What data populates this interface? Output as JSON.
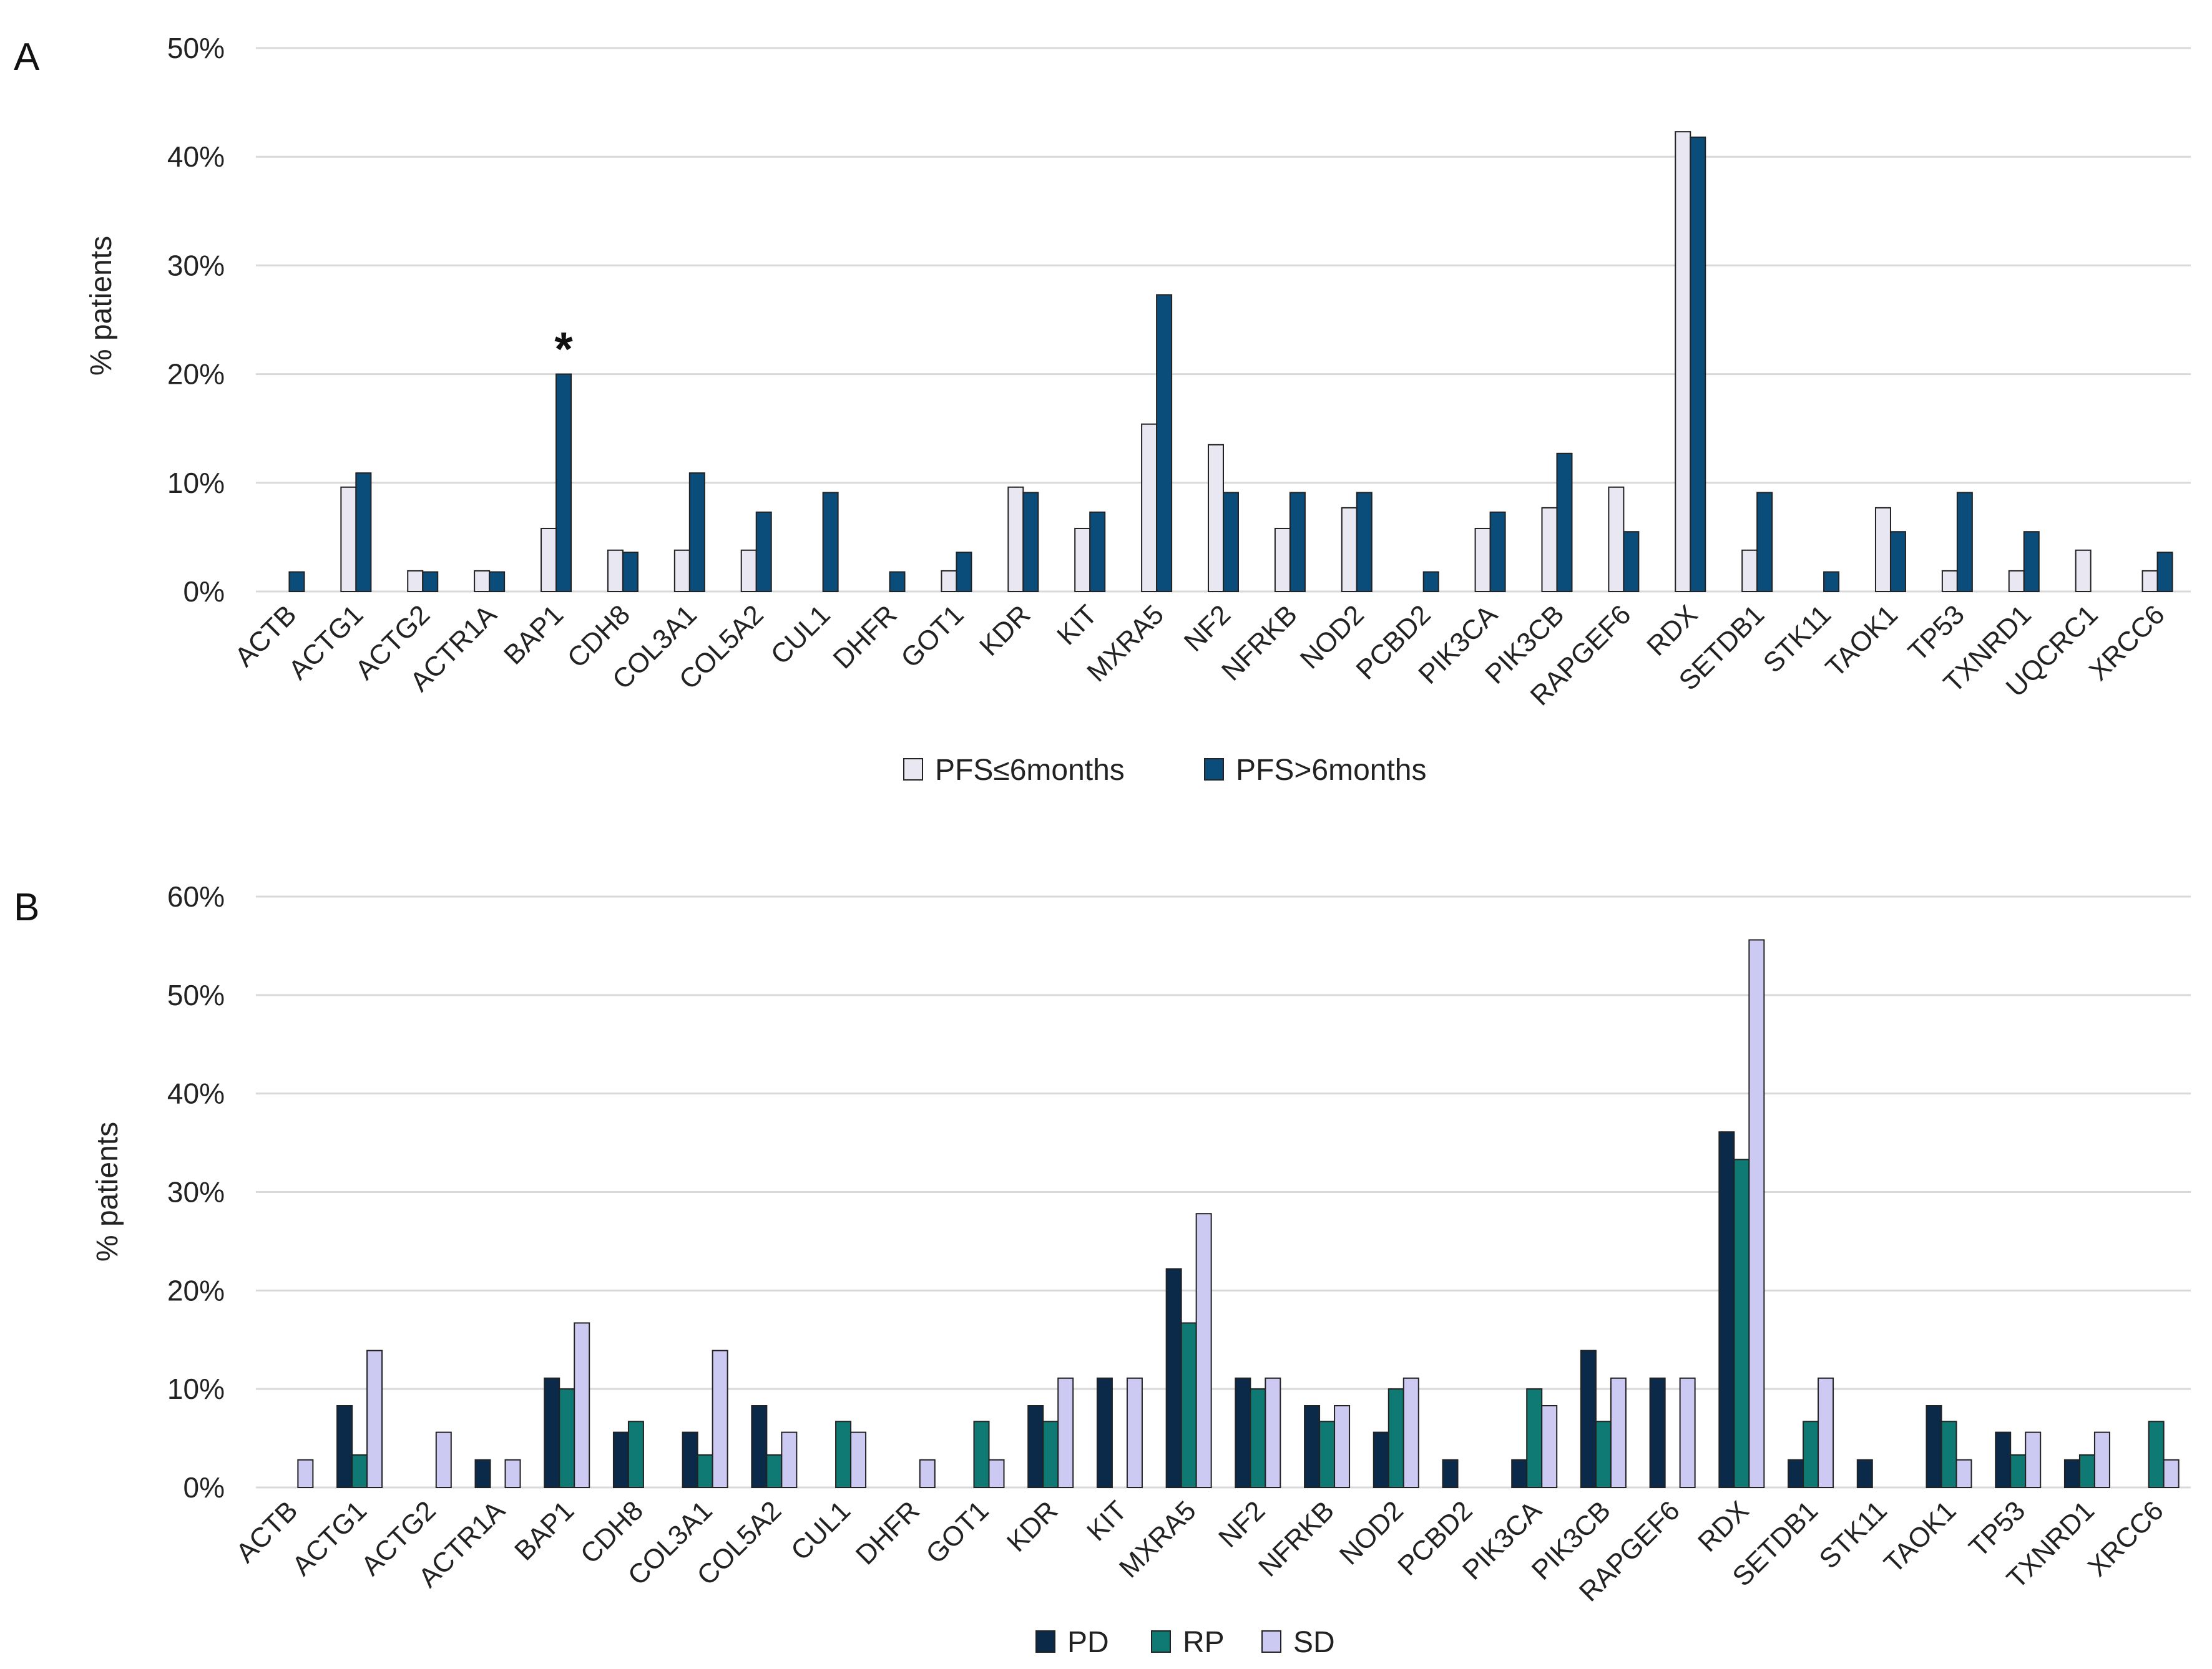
{
  "colors": {
    "pfs_le6": "#E9E7F2",
    "pfs_gt6": "#0B4D7A",
    "PD": "#0B2A4A",
    "RP": "#0F7A73",
    "SD": "#CCCAF2",
    "grid": "#D9D9D9",
    "bar_stroke": "#222222"
  },
  "chart_data": [
    {
      "panel": "A",
      "type": "bar",
      "ylabel": "% patients",
      "ylim": [
        0,
        50
      ],
      "yticks": [
        "0%",
        "10%",
        "20%",
        "30%",
        "40%",
        "50%"
      ],
      "legend_position": "bottom",
      "categories": [
        "ACTB",
        "ACTG1",
        "ACTG2",
        "ACTR1A",
        "BAP1",
        "CDH8",
        "COL3A1",
        "COL5A2",
        "CUL1",
        "DHFR",
        "GOT1",
        "KDR",
        "KIT",
        "MXRA5",
        "NF2",
        "NFRKB",
        "NOD2",
        "PCBD2",
        "PIK3CA",
        "PIK3CB",
        "RAPGEF6",
        "RDX",
        "SETDB1",
        "STK11",
        "TAOK1",
        "TP53",
        "TXNRD1",
        "UQCRC1",
        "XRCC6"
      ],
      "series": [
        {
          "name": "PFS≤6months",
          "values": [
            0,
            9.6,
            1.9,
            1.9,
            5.8,
            3.8,
            3.8,
            3.8,
            0,
            0,
            1.9,
            9.6,
            5.8,
            15.4,
            13.5,
            5.8,
            7.7,
            0,
            5.8,
            7.7,
            9.6,
            42.3,
            3.8,
            0,
            7.7,
            1.9,
            1.9,
            3.8,
            1.9
          ]
        },
        {
          "name": "PFS>6months",
          "values": [
            1.8,
            10.9,
            1.8,
            1.8,
            20.0,
            3.6,
            10.9,
            7.3,
            9.1,
            1.8,
            3.6,
            9.1,
            7.3,
            27.3,
            9.1,
            9.1,
            9.1,
            1.8,
            7.3,
            12.7,
            5.5,
            41.8,
            9.1,
            1.8,
            5.5,
            9.1,
            5.5,
            0,
            3.6
          ]
        }
      ],
      "annotations": [
        {
          "text": "*",
          "category": "BAP1",
          "series": "PFS>6months"
        }
      ]
    },
    {
      "panel": "B",
      "type": "bar",
      "ylabel": "% patients",
      "ylim": [
        0,
        60
      ],
      "yticks": [
        "0%",
        "10%",
        "20%",
        "30%",
        "40%",
        "50%",
        "60%"
      ],
      "legend_position": "bottom",
      "categories": [
        "ACTB",
        "ACTG1",
        "ACTG2",
        "ACTR1A",
        "BAP1",
        "CDH8",
        "COL3A1",
        "COL5A2",
        "CUL1",
        "DHFR",
        "GOT1",
        "KDR",
        "KIT",
        "MXRA5",
        "NF2",
        "NFRKB",
        "NOD2",
        "PCBD2",
        "PIK3CA",
        "PIK3CB",
        "RAPGEF6",
        "RDX",
        "SETDB1",
        "STK11",
        "TAOK1",
        "TP53",
        "TXNRD1",
        "XRCC6"
      ],
      "series": [
        {
          "name": "PD",
          "values": [
            0,
            8.3,
            0,
            2.8,
            11.1,
            5.6,
            5.6,
            8.3,
            0,
            0,
            0,
            8.3,
            11.1,
            22.2,
            11.1,
            8.3,
            5.6,
            2.8,
            2.8,
            13.9,
            11.1,
            36.1,
            2.8,
            2.8,
            8.3,
            5.6,
            2.8,
            0
          ]
        },
        {
          "name": "RP",
          "values": [
            0,
            3.3,
            0,
            0,
            10.0,
            6.7,
            3.3,
            3.3,
            6.7,
            0,
            6.7,
            6.7,
            0,
            16.7,
            10.0,
            6.7,
            10.0,
            0,
            10.0,
            6.7,
            0,
            33.3,
            6.7,
            0,
            6.7,
            3.3,
            3.3,
            6.7
          ]
        },
        {
          "name": "SD",
          "values": [
            2.8,
            13.9,
            5.6,
            2.8,
            16.7,
            0,
            13.9,
            5.6,
            5.6,
            2.8,
            2.8,
            11.1,
            11.1,
            27.8,
            11.1,
            8.3,
            11.1,
            0,
            8.3,
            11.1,
            11.1,
            55.6,
            11.1,
            0,
            2.8,
            5.6,
            5.6,
            2.8
          ]
        }
      ]
    }
  ]
}
